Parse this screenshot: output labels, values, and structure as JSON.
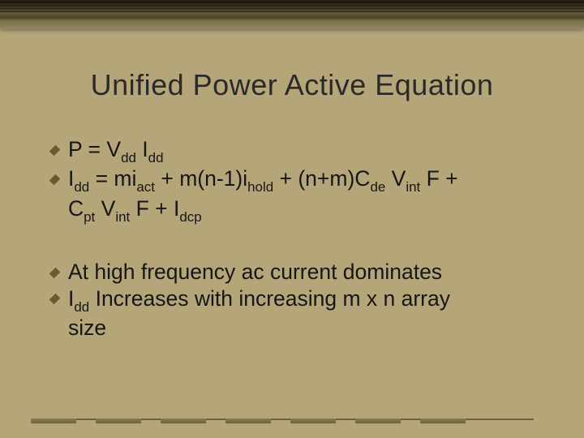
{
  "colors": {
    "background": "#b5a67a",
    "text": "#161616",
    "title": "#2a2a2a",
    "bullet": "#6a5a32",
    "rule": "#6e6240"
  },
  "title": "Unified Power Active Equation",
  "bullets_block1": [
    {
      "tokens": [
        {
          "t": "P = V"
        },
        {
          "t": "dd",
          "sub": true
        },
        {
          "t": " I"
        },
        {
          "t": "dd",
          "sub": true
        }
      ]
    },
    {
      "tokens": [
        {
          "t": "I"
        },
        {
          "t": "dd",
          "sub": true
        },
        {
          "t": " = mi"
        },
        {
          "t": "act",
          "sub": true
        },
        {
          "t": " + m(n-1)i"
        },
        {
          "t": "hold",
          "sub": true
        },
        {
          "t": " + (n+m)C"
        },
        {
          "t": "de",
          "sub": true
        },
        {
          "t": " V"
        },
        {
          "t": "int",
          "sub": true
        },
        {
          "t": " F + "
        }
      ],
      "cont_tokens": [
        {
          "t": "C"
        },
        {
          "t": "pt",
          "sub": true
        },
        {
          "t": " V"
        },
        {
          "t": "int",
          "sub": true
        },
        {
          "t": " F + I"
        },
        {
          "t": "dcp",
          "sub": true
        }
      ]
    }
  ],
  "bullets_block2": [
    {
      "tokens": [
        {
          "t": "At high frequency ac current dominates"
        }
      ]
    },
    {
      "tokens": [
        {
          "t": "I"
        },
        {
          "t": "dd",
          "sub": true
        },
        {
          "t": " Increases with increasing m x n array "
        }
      ],
      "cont_tokens": [
        {
          "t": "size"
        }
      ]
    }
  ],
  "bottom_rule": {
    "tick_count": 7,
    "tick_width": 56,
    "tick_gap": 24
  }
}
